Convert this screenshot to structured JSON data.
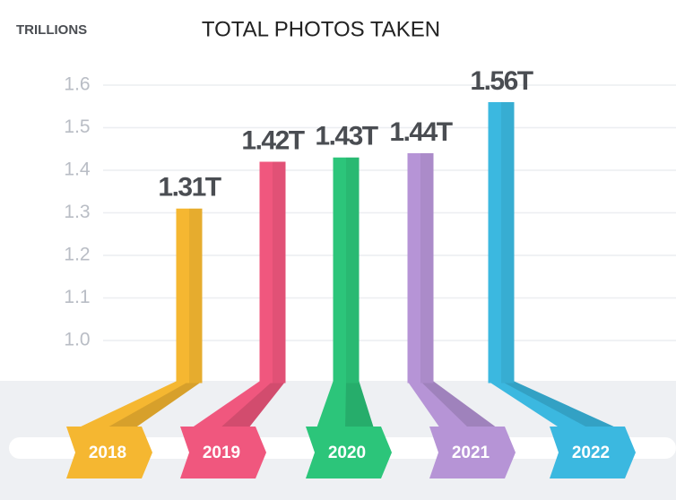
{
  "chart_data": {
    "type": "bar",
    "title": "TOTAL PHOTOS TAKEN",
    "ylabel": "TRILLIONS",
    "categories": [
      "2018",
      "2019",
      "2020",
      "2021",
      "2022"
    ],
    "values": [
      1.31,
      1.42,
      1.43,
      1.44,
      1.56
    ],
    "value_labels": [
      "1.31T",
      "1.42T",
      "1.43T",
      "1.44T",
      "1.56T"
    ],
    "colors": [
      "#f5b731",
      "#f0577e",
      "#2cc57a",
      "#b694d6",
      "#3bb8e0"
    ],
    "ylim": [
      0.9,
      1.7
    ],
    "yticks": [
      {
        "value": 1,
        "label": "1.0"
      },
      1.1,
      1.2,
      1.3,
      1.4,
      1.5,
      1.6
    ],
    "grid": true
  }
}
